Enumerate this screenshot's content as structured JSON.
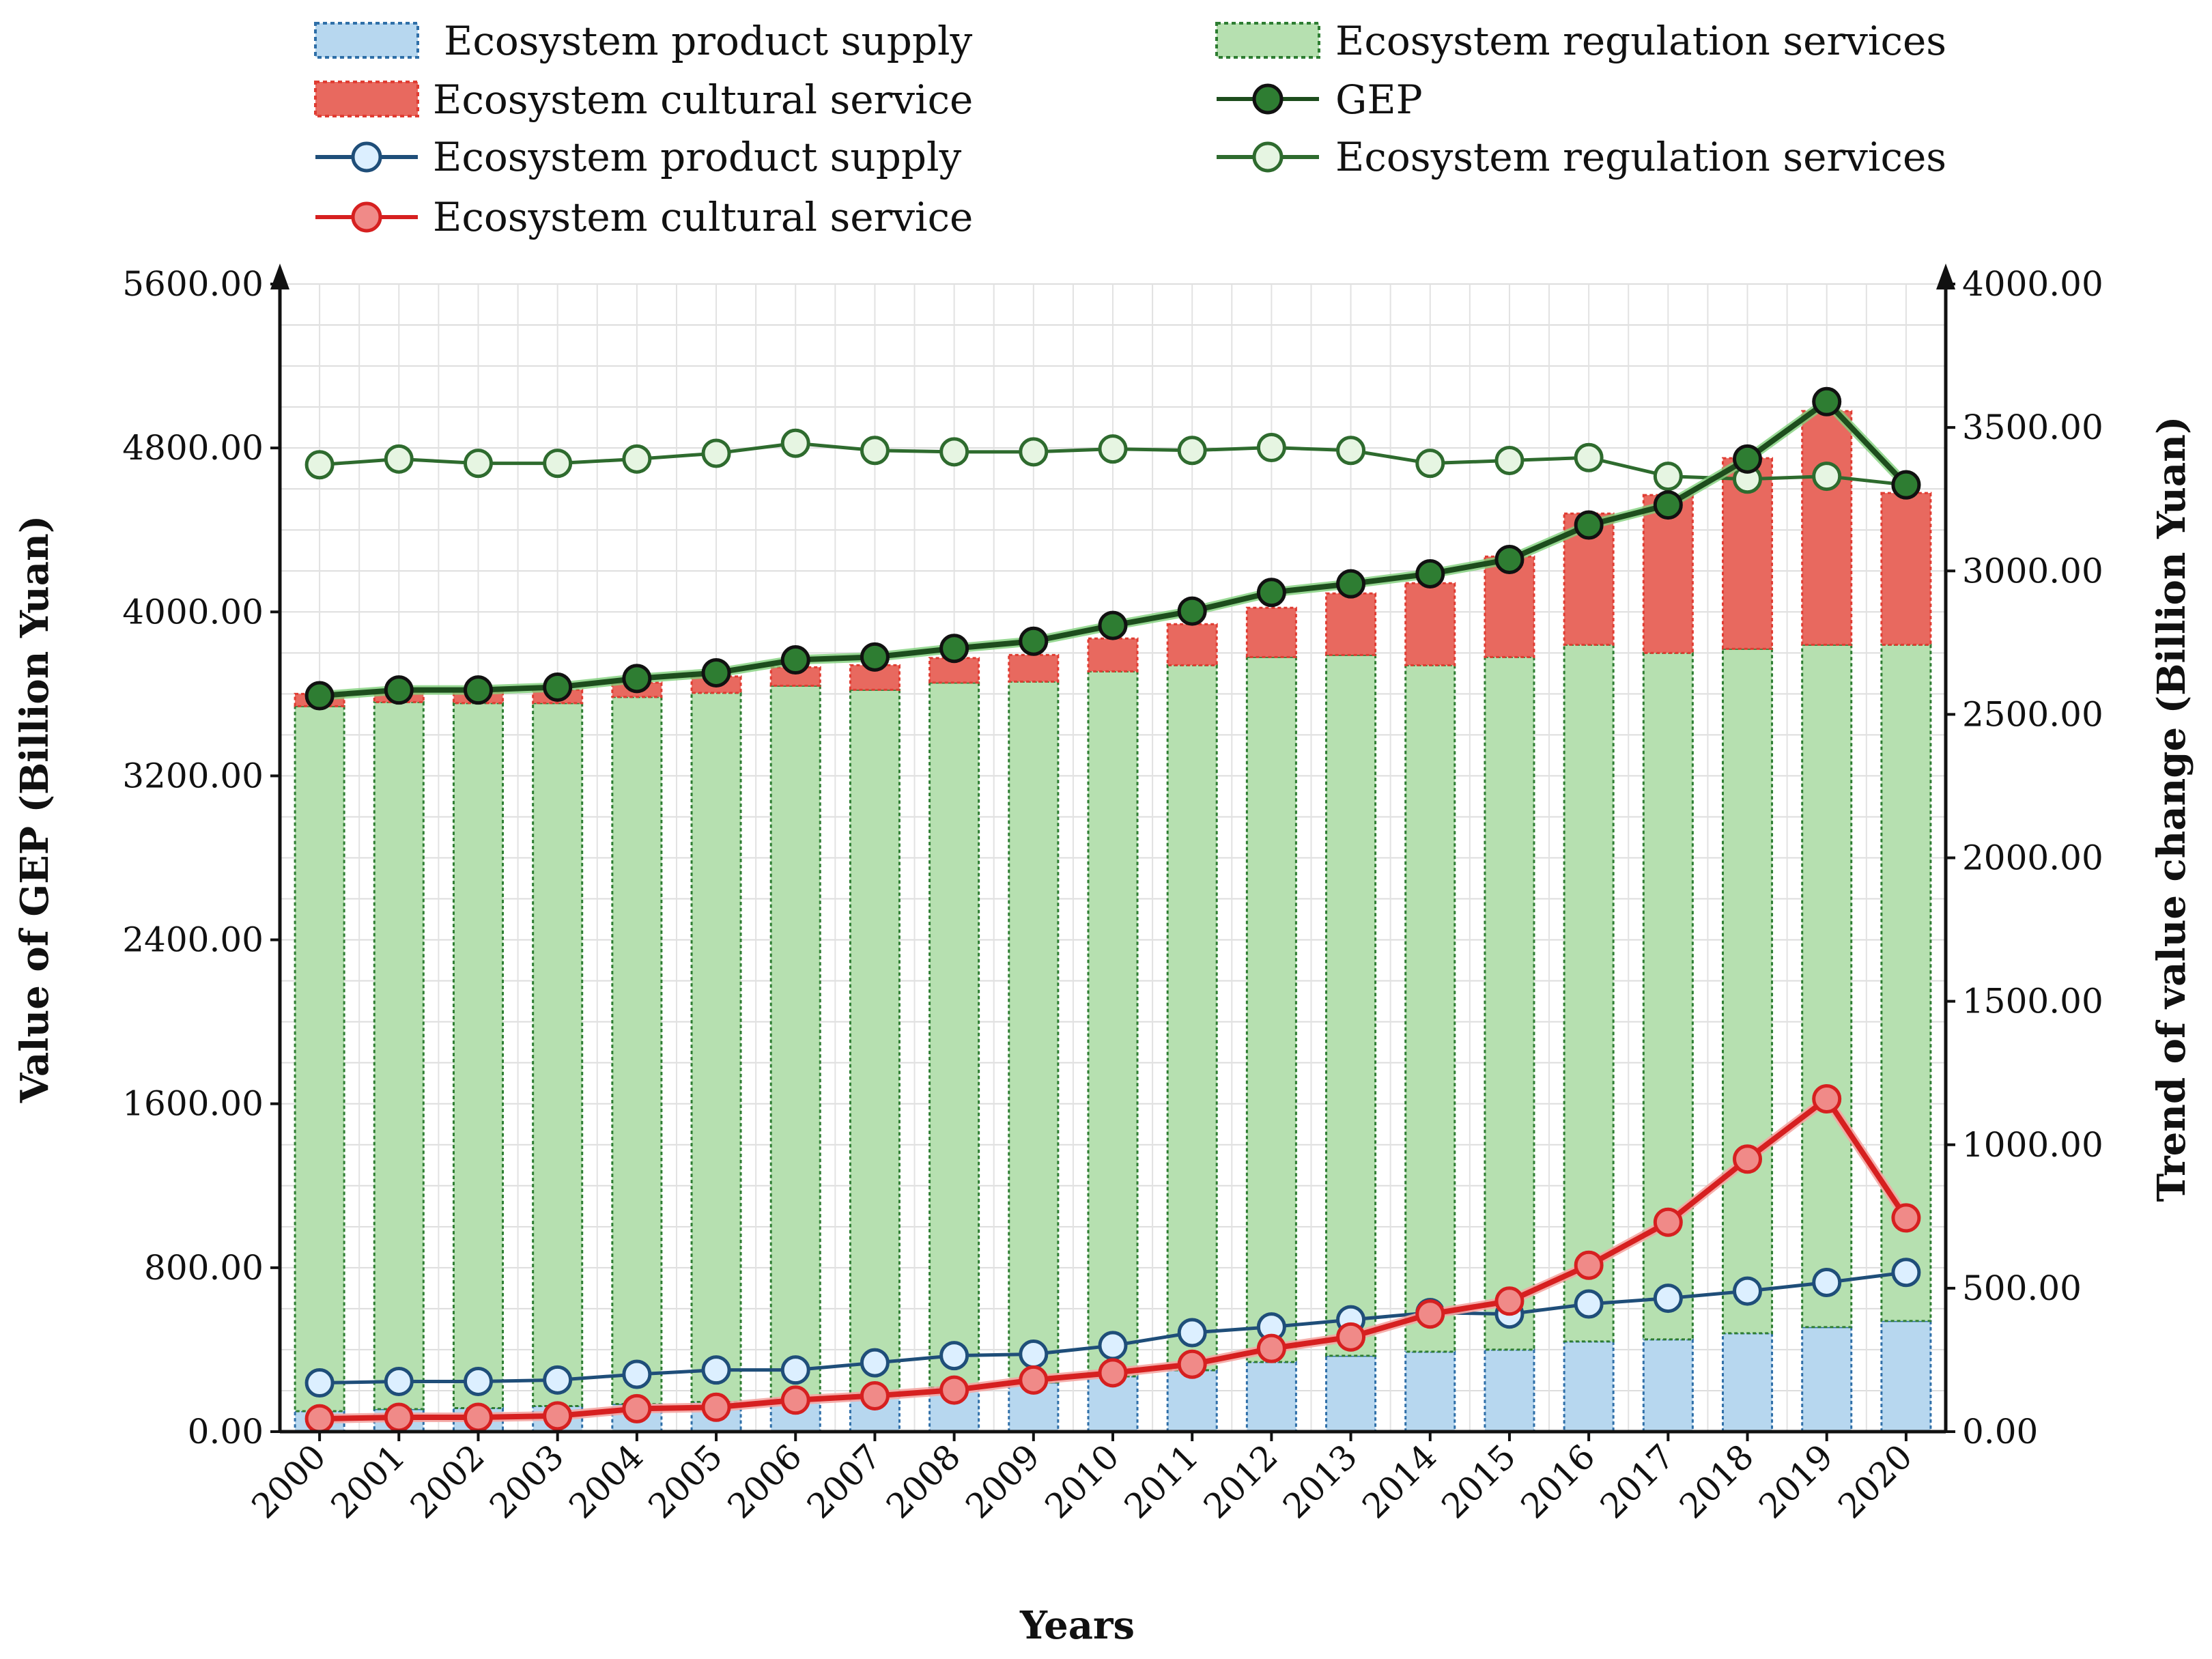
{
  "chart_data": {
    "type": "bar+line",
    "categories": [
      "2000",
      "2001",
      "2002",
      "2003",
      "2004",
      "2005",
      "2006",
      "2007",
      "2008",
      "2009",
      "2010",
      "2011",
      "2012",
      "2013",
      "2014",
      "2015",
      "2016",
      "2017",
      "2018",
      "2019",
      "2020"
    ],
    "bar_series": [
      {
        "name": "Ecosystem product supply",
        "color": "#b7d7ef",
        "border": "#2f6fa8",
        "values": [
          100,
          110,
          115,
          125,
          135,
          145,
          160,
          180,
          215,
          240,
          270,
          300,
          340,
          370,
          390,
          400,
          440,
          450,
          480,
          510,
          540
        ]
      },
      {
        "name": "Ecosystem regulation services",
        "color": "#b6e0b0",
        "border": "#2e7d32",
        "values": [
          3440,
          3450,
          3440,
          3430,
          3450,
          3460,
          3480,
          3440,
          3440,
          3420,
          3440,
          3440,
          3440,
          3420,
          3350,
          3380,
          3400,
          3350,
          3340,
          3330,
          3300
        ]
      },
      {
        "name": "Ecosystem cultural service",
        "color": "#e8695f",
        "border": "#e03c32",
        "values": [
          60,
          55,
          55,
          65,
          70,
          80,
          90,
          120,
          120,
          130,
          160,
          200,
          240,
          300,
          400,
          490,
          640,
          770,
          930,
          1140,
          740
        ]
      }
    ],
    "line_series": [
      {
        "name": "GEP",
        "color": "#1d4d1d",
        "marker_fill": "#2e7d32",
        "values": [
          2565,
          2585,
          2585,
          2595,
          2625,
          2645,
          2690,
          2700,
          2730,
          2755,
          2810,
          2860,
          2925,
          2955,
          2990,
          3040,
          3160,
          3230,
          3390,
          3590,
          3300
        ]
      },
      {
        "name": "Ecosystem product supply",
        "color": "#1f4e79",
        "marker_fill": "#dcefff",
        "values": [
          170,
          175,
          175,
          180,
          200,
          215,
          215,
          240,
          265,
          270,
          300,
          345,
          365,
          390,
          415,
          410,
          445,
          465,
          490,
          520,
          555
        ]
      },
      {
        "name": "Ecosystem regulation services",
        "color": "#2e6b2e",
        "marker_fill": "#e6f5e2",
        "values": [
          3370,
          3390,
          3375,
          3375,
          3390,
          3410,
          3445,
          3420,
          3415,
          3415,
          3425,
          3420,
          3430,
          3420,
          3375,
          3385,
          3395,
          3330,
          3320,
          3330,
          3300
        ]
      },
      {
        "name": "Ecosystem cultural service",
        "color": "#d62020",
        "marker_fill": "#f08a88",
        "values": [
          45,
          50,
          50,
          55,
          80,
          85,
          110,
          125,
          145,
          180,
          205,
          235,
          290,
          330,
          410,
          455,
          580,
          730,
          950,
          1160,
          745
        ]
      }
    ],
    "y_left": {
      "label": "Value of GEP (Billion Yuan)",
      "min": 0,
      "max": 5600,
      "step": 800,
      "ticks": [
        "0.00",
        "800.00",
        "1600.00",
        "2400.00",
        "3200.00",
        "4000.00",
        "4800.00",
        "5600.00"
      ]
    },
    "y_right": {
      "label": "Trend of value change (Billion Yuan)",
      "min": 0,
      "max": 4000,
      "step": 500,
      "ticks": [
        "0.00",
        "500.00",
        "1000.00",
        "1500.00",
        "2000.00",
        "2500.00",
        "3000.00",
        "3500.00",
        "4000.00"
      ]
    },
    "xlabel": "Years",
    "grid": true,
    "legend_position": "top"
  },
  "legend": {
    "bar_supply": "Ecosystem product supply",
    "bar_regulation": "Ecosystem regulation services",
    "bar_cultural": "Ecosystem cultural service",
    "line_gep": "GEP",
    "line_supply": "Ecosystem product supply",
    "line_regulation": "Ecosystem regulation services",
    "line_cultural": "Ecosystem cultural service"
  }
}
